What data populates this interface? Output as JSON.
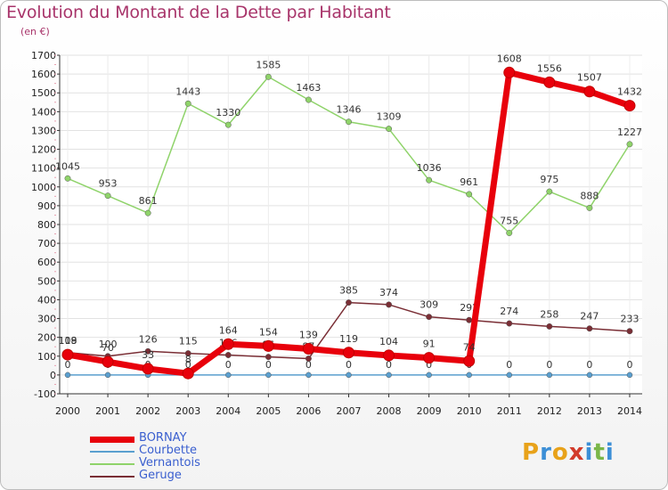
{
  "title": "Evolution du Montant de la Dette par Habitant",
  "subtitle": "(en €)",
  "logo": {
    "letters": [
      "P",
      "r",
      "o",
      "x",
      "i",
      "t",
      "i"
    ],
    "colors": [
      "#e8a21a",
      "#3c8fd6",
      "#e8a21a",
      "#d23a2a",
      "#3c8fd6",
      "#7ab648",
      "#3c8fd6"
    ]
  },
  "chart_data": {
    "type": "line",
    "title": "Evolution du Montant de la Dette par Habitant",
    "ylabel": "(en €)",
    "xlabel": "",
    "x": [
      "2000",
      "2001",
      "2002",
      "2003",
      "2004",
      "2005",
      "2006",
      "2007",
      "2008",
      "2009",
      "2010",
      "2011",
      "2012",
      "2013",
      "2014"
    ],
    "ylim": [
      -100,
      1700
    ],
    "yticks": [
      -100,
      0,
      100,
      200,
      300,
      400,
      500,
      600,
      700,
      800,
      900,
      1000,
      1100,
      1200,
      1300,
      1400,
      1500,
      1600,
      1700
    ],
    "grid": true,
    "legend_position": "bottom-left",
    "series": [
      {
        "name": "BORNAY",
        "color": "#e8000b",
        "values": [
          108,
          70,
          33,
          8,
          164,
          154,
          139,
          119,
          104,
          91,
          74,
          1608,
          1556,
          1507,
          1432
        ]
      },
      {
        "name": "Courbette",
        "color": "#5a9fcf",
        "values": [
          0,
          0,
          0,
          0,
          0,
          0,
          0,
          0,
          0,
          0,
          0,
          0,
          0,
          0,
          0
        ]
      },
      {
        "name": "Vernantois",
        "color": "#8fd36a",
        "values": [
          1045,
          953,
          861,
          1443,
          1330,
          1585,
          1463,
          1346,
          1309,
          1036,
          961,
          755,
          975,
          888,
          1227
        ]
      },
      {
        "name": "Geruge",
        "color": "#7a2e35",
        "values": [
          119,
          100,
          126,
          115,
          106,
          96,
          87,
          385,
          374,
          309,
          292,
          274,
          258,
          247,
          233
        ]
      }
    ]
  }
}
